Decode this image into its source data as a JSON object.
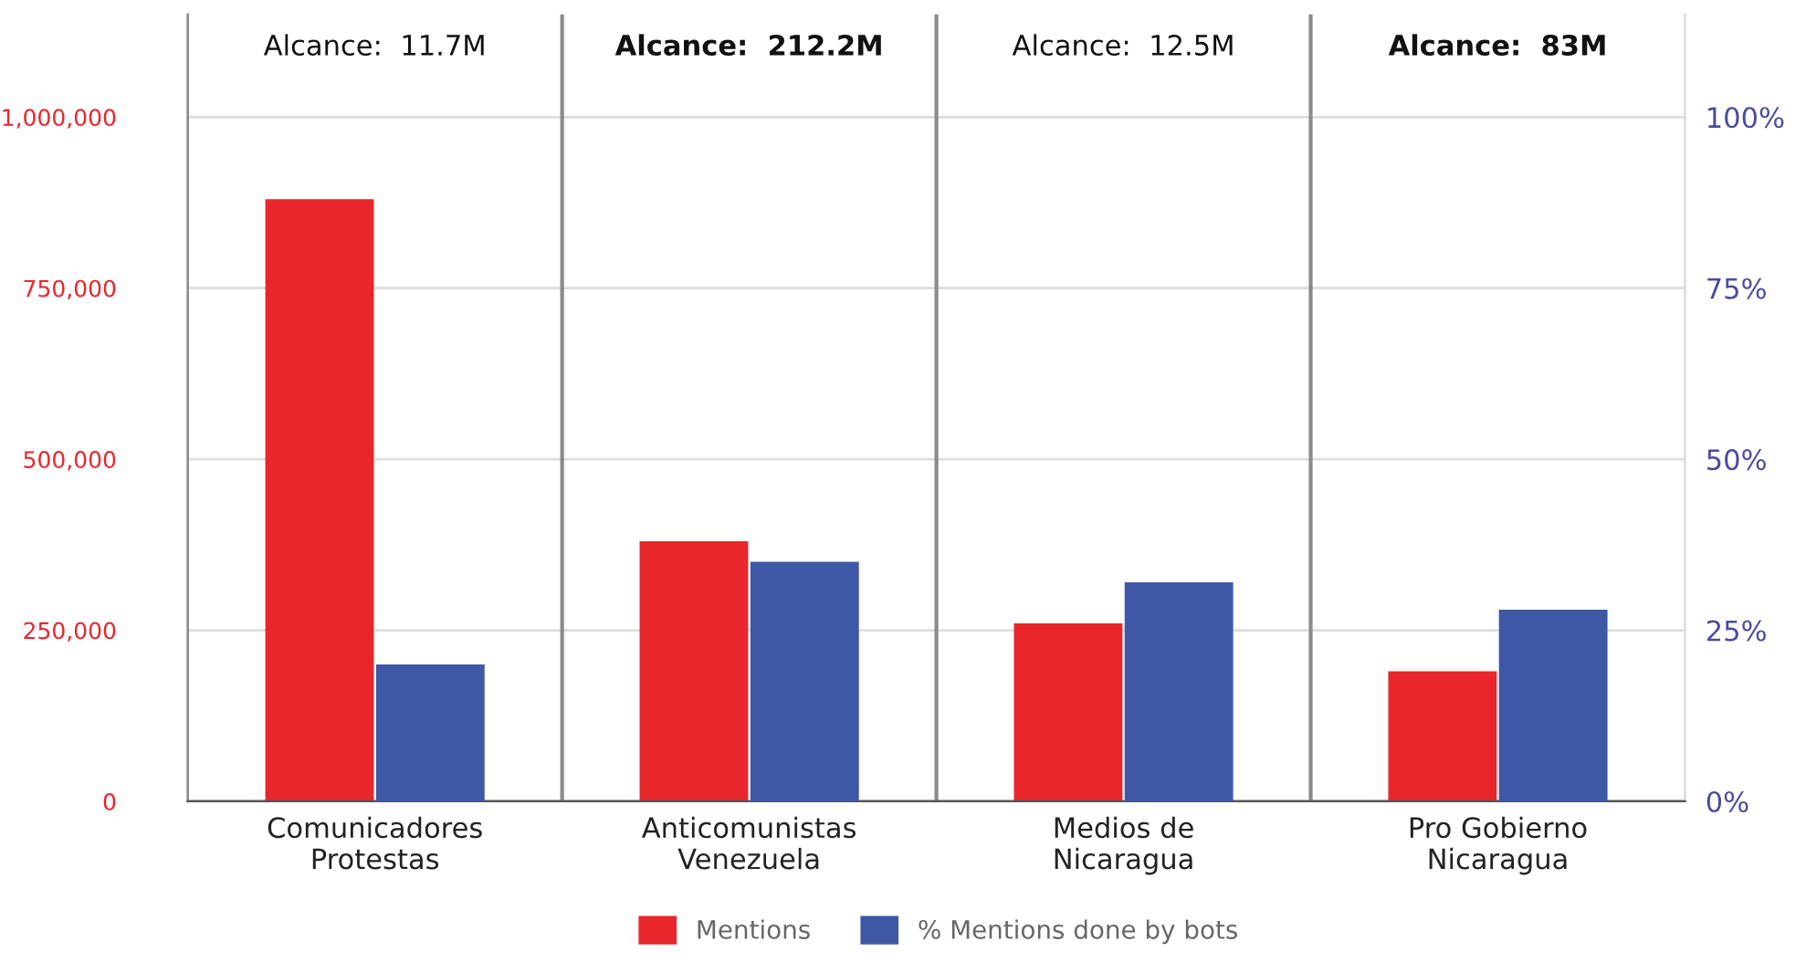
{
  "chart_data": {
    "type": "bar",
    "categories": [
      "Comunicadores\nProtestas",
      "Anticomunistas\nVenezuela",
      "Medios de\nNicaragua",
      "Pro Gobierno\nNicaragua"
    ],
    "series": [
      {
        "name": "Mentions",
        "color": "#e8262b",
        "values": [
          880000,
          380000,
          260000,
          190000
        ]
      },
      {
        "name": "% Mentions done by bots",
        "color": "#3f58a6",
        "values": [
          20,
          35,
          32,
          28
        ],
        "axis": "y2"
      }
    ],
    "ylim": [
      0,
      1150000
    ],
    "yticks": [
      {
        "value": 0,
        "label": "0"
      },
      {
        "value": 250000,
        "label": "250,000"
      },
      {
        "value": 500000,
        "label": "500,000"
      },
      {
        "value": 750000,
        "label": "750,000"
      },
      {
        "value": 1000000,
        "label": "1,000,000"
      }
    ],
    "y2lim": [
      0,
      115
    ],
    "y2ticks": [
      {
        "value": 0,
        "label": "0%"
      },
      {
        "value": 25,
        "label": "25%"
      },
      {
        "value": 50,
        "label": "50%"
      },
      {
        "value": 75,
        "label": "75%"
      },
      {
        "value": 100,
        "label": "100%"
      }
    ],
    "annotations": [
      "Alcance:  11.7M",
      "Alcance:  212.2M",
      "Alcance:  12.5M",
      "Alcance:  83M"
    ],
    "grid": "y",
    "legend": "bottom"
  }
}
